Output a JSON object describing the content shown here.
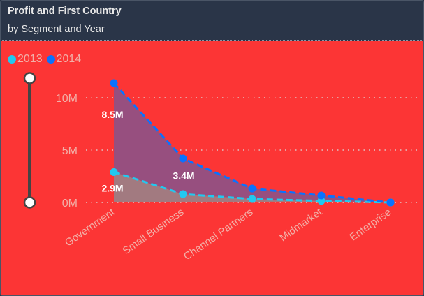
{
  "header": {
    "title": "Profit and First Country",
    "subtitle": "by Segment and Year"
  },
  "colors": {
    "2013": "#21c9f0",
    "2014": "#0a72ff",
    "background": "#fc3535"
  },
  "chart_data": {
    "type": "area",
    "stacked": true,
    "title": "Profit and First Country",
    "subtitle": "by Segment and Year",
    "xlabel": "",
    "ylabel": "",
    "categories": [
      "Government",
      "Small Business",
      "Channel Partners",
      "Midmarket",
      "Enterprise"
    ],
    "series": [
      {
        "name": "2013",
        "values": [
          2.9,
          0.8,
          0.33,
          0.15,
          0.0
        ],
        "labels": [
          "2.9M",
          "",
          "",
          "",
          ""
        ]
      },
      {
        "name": "2014",
        "values": [
          8.5,
          3.4,
          1.0,
          0.52,
          0.0
        ],
        "labels": [
          "8.5M",
          "3.4M",
          "",
          "",
          ""
        ]
      }
    ],
    "yticks": [
      {
        "v": 0,
        "label": "0M"
      },
      {
        "v": 5,
        "label": "5M"
      },
      {
        "v": 10,
        "label": "10M"
      }
    ],
    "ylim": [
      0,
      12
    ],
    "grid": true,
    "legend": "top-left"
  }
}
